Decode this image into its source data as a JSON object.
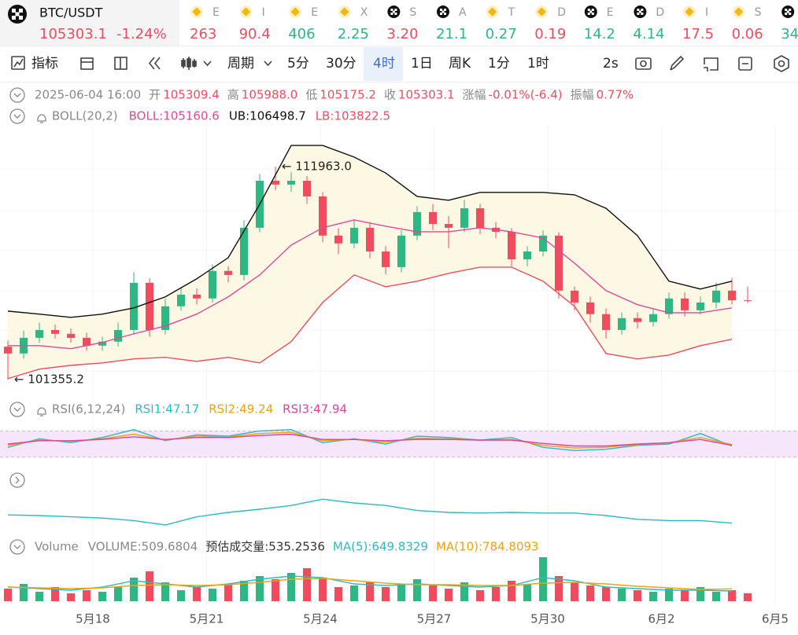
{
  "header": {
    "pair": "BTC/USDT",
    "price": "105303.1",
    "change": "-1.24%",
    "price_color": "#f04c5c",
    "tickers": [
      {
        "icon": "bnb",
        "name": "E",
        "value": "263",
        "color": "#f04c5c"
      },
      {
        "icon": "bnb",
        "name": "I",
        "value": "90.4",
        "color": "#f04c5c"
      },
      {
        "icon": "bnb",
        "name": "E",
        "value": "406",
        "color": "#2db783"
      },
      {
        "icon": "bnb",
        "name": "X",
        "value": "2.25",
        "color": "#2db783"
      },
      {
        "icon": "cross",
        "name": "S",
        "value": "3.20",
        "color": "#f04c5c"
      },
      {
        "icon": "cross",
        "name": "A",
        "value": "21.1",
        "color": "#2db783"
      },
      {
        "icon": "bnb",
        "name": "T",
        "value": "0.27",
        "color": "#2db783"
      },
      {
        "icon": "bnb",
        "name": "D",
        "value": "0.19",
        "color": "#f04c5c"
      },
      {
        "icon": "cross",
        "name": "E",
        "value": "14.2",
        "color": "#2db783"
      },
      {
        "icon": "cross",
        "name": "D",
        "value": "4.14",
        "color": "#2db783"
      },
      {
        "icon": "bnb",
        "name": "I",
        "value": "17.5",
        "color": "#f04c5c"
      },
      {
        "icon": "bnb",
        "name": "S",
        "value": "0.06",
        "color": "#f04c5c"
      },
      {
        "icon": "cross",
        "value": "34",
        "color": "#2db783"
      }
    ]
  },
  "toolbar": {
    "items": [
      "指标",
      "周期",
      "5分",
      "30分",
      "4时",
      "1日",
      "周K",
      "1分",
      "1时",
      "2s"
    ],
    "active_index": 4
  },
  "info": {
    "time": "2025-06-04 16:00",
    "value_color": "#f04c5c",
    "fields": [
      {
        "label": "开",
        "value": "105309.4"
      },
      {
        "label": "高",
        "value": "105988.0"
      },
      {
        "label": "低",
        "value": "105175.2"
      },
      {
        "label": "收",
        "value": "105303.1"
      },
      {
        "label": "涨幅",
        "value": "-0.01%(-6.4)"
      },
      {
        "label": "振幅",
        "value": "0.77%"
      }
    ]
  },
  "chart_data": [
    {
      "type": "candlestick",
      "title": "BOLL(20,2)",
      "up_color": "#2db783",
      "down_color": "#f04c5c",
      "ylim": [
        100500,
        114000
      ],
      "x_labels": [
        "5月18",
        "5月21",
        "5月24",
        "5月27",
        "5月30",
        "6月2",
        "6月5"
      ],
      "open": [
        103000,
        102660,
        103440,
        103830,
        103640,
        103440,
        103050,
        103250,
        103830,
        106180,
        103830,
        105010,
        105590,
        105400,
        106770,
        106570,
        108920,
        111260,
        111070,
        111260,
        110480,
        108530,
        108140,
        108920,
        107740,
        106960,
        108530,
        109700,
        109110,
        108920,
        109890,
        108920,
        108720,
        107350,
        107740,
        108530,
        105790,
        105200,
        104620,
        103830,
        104420,
        104230,
        104620,
        105400,
        104810,
        105200,
        105790,
        105309.4
      ],
      "high": [
        103300,
        103800,
        104200,
        104100,
        103900,
        103700,
        103500,
        104200,
        106700,
        106400,
        105400,
        105900,
        105900,
        107100,
        107000,
        109300,
        111600,
        111963,
        111700,
        111500,
        110700,
        108900,
        109300,
        109200,
        108000,
        108800,
        110000,
        110100,
        109500,
        110300,
        110100,
        109200,
        108900,
        108000,
        108800,
        108700,
        106000,
        105500,
        104900,
        104700,
        104700,
        104900,
        105700,
        105700,
        105500,
        106200,
        106400,
        105988.0
      ],
      "low": [
        101355.2,
        102400,
        103200,
        103400,
        103200,
        102800,
        102800,
        103000,
        103600,
        103500,
        103600,
        104800,
        105100,
        105200,
        106200,
        106300,
        108700,
        110800,
        110700,
        110100,
        108200,
        107600,
        107900,
        107400,
        106600,
        106700,
        108300,
        108800,
        107900,
        108700,
        108600,
        108400,
        107000,
        107000,
        107500,
        105400,
        104800,
        104200,
        103400,
        103600,
        103900,
        104000,
        104400,
        104500,
        104600,
        104900,
        105100,
        105175.2
      ],
      "close": [
        102660,
        103440,
        103830,
        103640,
        103440,
        103050,
        103250,
        103830,
        106180,
        103830,
        105010,
        105590,
        105400,
        106770,
        106570,
        108920,
        111260,
        111070,
        111260,
        110480,
        108530,
        108140,
        108920,
        107740,
        106960,
        108530,
        109700,
        109110,
        108920,
        109890,
        108920,
        108720,
        107350,
        107740,
        108530,
        105790,
        105200,
        104620,
        103830,
        104420,
        104230,
        104620,
        105400,
        104810,
        105200,
        105790,
        105309.4,
        105303.1
      ],
      "band_fill": "#fdf8e3",
      "series": [
        {
          "label": "BOLL:105160.6",
          "color": "#e0489a",
          "values": [
            103050,
            103050,
            102900,
            103210,
            103640,
            104030,
            104620,
            105480,
            106570,
            108060,
            108920,
            109310,
            109000,
            108720,
            108720,
            108920,
            108720,
            108410,
            107160,
            105790,
            105090,
            104690,
            104690,
            104930
          ]
        },
        {
          "label": "UB:106498.7",
          "color": "#111111",
          "values": [
            104770,
            104620,
            104460,
            104620,
            104930,
            105480,
            106380,
            107430,
            110090,
            113020,
            113020,
            112440,
            111650,
            110480,
            110290,
            110680,
            110680,
            110680,
            110560,
            109890,
            108530,
            106260,
            105870,
            106260
          ]
        },
        {
          "label": "LB:103822.5",
          "color": "#f04c5c",
          "values": [
            101410,
            101880,
            102070,
            102190,
            102390,
            102470,
            102270,
            102470,
            102190,
            103250,
            105200,
            106570,
            105980,
            106260,
            106650,
            106960,
            106960,
            106260,
            105010,
            102660,
            102390,
            102580,
            103050,
            103370
          ]
        }
      ],
      "annotations": [
        {
          "text": "← 111963.0",
          "value": 111963
        },
        {
          "text": "← 101355.2",
          "value": 101355.2
        }
      ]
    },
    {
      "type": "line",
      "title": "RSI(6,12,24)",
      "ylim": [
        20,
        80
      ],
      "reference_levels": [
        30,
        70
      ],
      "reference_fill": "#f5e6fb",
      "series": [
        {
          "label": "RSI1:47.17",
          "color": "#2bbbc4",
          "values": [
            45,
            58,
            52,
            60,
            72,
            55,
            64,
            62,
            70,
            72,
            52,
            58,
            50,
            62,
            60,
            56,
            60,
            45,
            40,
            42,
            48,
            50,
            66,
            47.17
          ]
        },
        {
          "label": "RSI2:49.24",
          "color": "#f0a30a",
          "values": [
            48,
            56,
            54,
            58,
            65,
            56,
            62,
            61,
            66,
            68,
            55,
            57,
            53,
            59,
            58,
            56,
            57,
            48,
            44,
            45,
            49,
            52,
            60,
            49.24
          ]
        },
        {
          "label": "RSI3:47.94",
          "color": "#e040a0",
          "values": [
            50,
            55,
            55,
            57,
            61,
            57,
            60,
            60,
            63,
            65,
            57,
            57,
            55,
            57,
            57,
            56,
            56,
            51,
            47,
            47,
            50,
            52,
            57,
            47.94
          ]
        }
      ]
    },
    {
      "type": "line",
      "ylim": [
        0,
        100
      ],
      "series": [
        {
          "color": "#2bbbc4",
          "values": [
            31,
            30,
            28,
            26,
            22,
            15,
            28,
            35,
            40,
            46,
            56,
            50,
            46,
            38,
            35,
            34,
            35,
            34,
            34,
            30,
            24,
            22,
            22,
            18
          ]
        }
      ]
    },
    {
      "type": "bar",
      "title": "Volume",
      "volume_label": "VOLUME:509.6804",
      "estimate_label": "预估成交量:535.2536",
      "ylim": [
        0,
        3000
      ],
      "values": [
        800,
        1100,
        600,
        900,
        500,
        700,
        600,
        900,
        1500,
        1900,
        1200,
        700,
        900,
        800,
        1100,
        1300,
        1600,
        1400,
        1800,
        2100,
        1500,
        900,
        1000,
        1200,
        900,
        1100,
        1400,
        1000,
        800,
        1200,
        700,
        900,
        1300,
        1100,
        2800,
        1600,
        1200,
        1000,
        900,
        800,
        700,
        600,
        800,
        700,
        900,
        600,
        700,
        509.6804
      ],
      "series": [
        {
          "label": "MA(5):649.8329",
          "color": "#2bbbc4",
          "values": [
            900,
            800,
            700,
            900,
            1300,
            1100,
            900,
            1100,
            1400,
            1600,
            1500,
            1100,
            1000,
            1100,
            1000,
            900,
            1000,
            1500,
            1300,
            900,
            800,
            700,
            700,
            649.8329
          ]
        },
        {
          "label": "MA(10):784.8093",
          "color": "#f0a30a",
          "values": [
            900,
            850,
            800,
            850,
            1000,
            1050,
            1000,
            1050,
            1200,
            1400,
            1450,
            1300,
            1150,
            1050,
            1050,
            1000,
            1000,
            1150,
            1200,
            1100,
            950,
            850,
            750,
            784.8093
          ]
        }
      ]
    }
  ]
}
